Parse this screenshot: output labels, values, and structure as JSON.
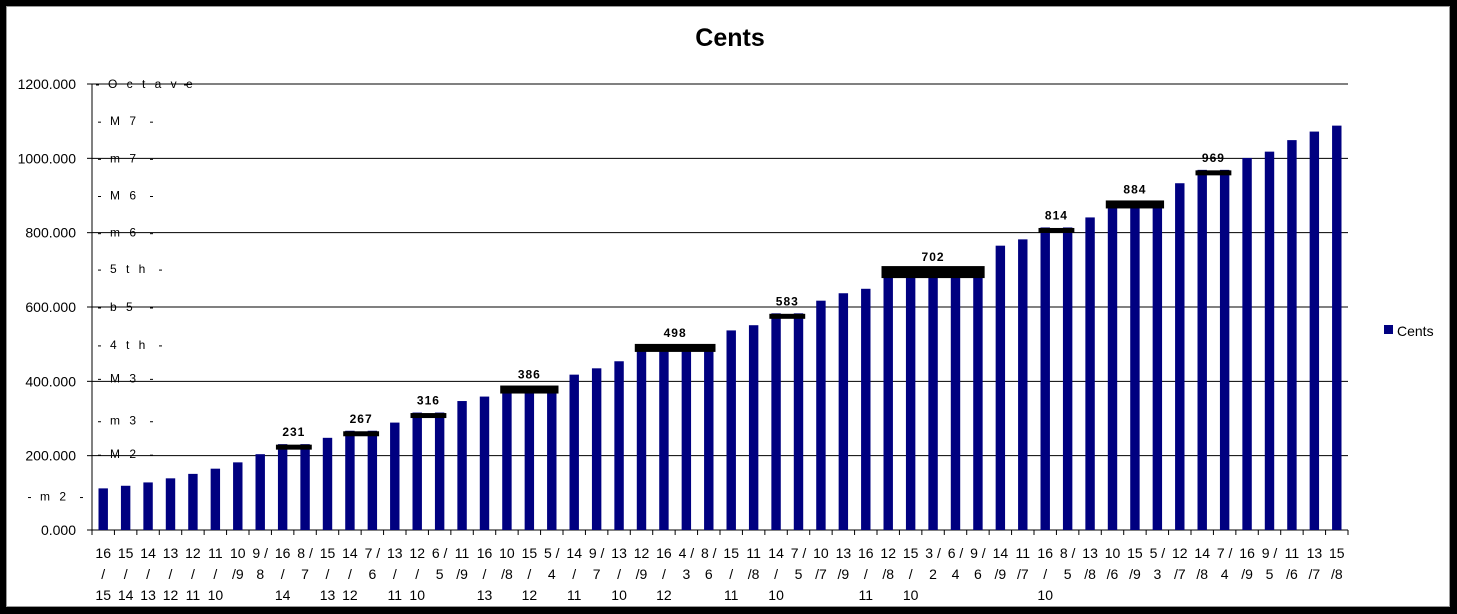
{
  "chart_data": {
    "type": "bar",
    "title": "Cents",
    "ylim": [
      0,
      1200
    ],
    "y_ticks": [
      "0.000",
      "200.000",
      "400.000",
      "600.000",
      "800.000",
      "1000.000",
      "1200.000"
    ],
    "y_tick_values": [
      0,
      200,
      400,
      600,
      800,
      1000,
      1200
    ],
    "grid": true,
    "legend_position": "right",
    "bar_color": "#000080",
    "categories": [
      [
        "16",
        "/",
        "15"
      ],
      [
        "15",
        "/",
        "14"
      ],
      [
        "14",
        "/",
        "13"
      ],
      [
        "13",
        "/",
        "12"
      ],
      [
        "12",
        "/",
        "11"
      ],
      [
        "11",
        "/",
        "10"
      ],
      [
        "10",
        "/9",
        ""
      ],
      [
        "9 /",
        "8",
        ""
      ],
      [
        "16",
        "/",
        "14"
      ],
      [
        "8 /",
        "7",
        ""
      ],
      [
        "15",
        "/",
        "13"
      ],
      [
        "14",
        "/",
        "12"
      ],
      [
        "7 /",
        "6",
        ""
      ],
      [
        "13",
        "/",
        "11"
      ],
      [
        "12",
        "/",
        "10"
      ],
      [
        "6 /",
        "5",
        ""
      ],
      [
        "11",
        "/9",
        ""
      ],
      [
        "16",
        "/",
        "13"
      ],
      [
        "10",
        "/8",
        ""
      ],
      [
        "15",
        "/",
        "12"
      ],
      [
        "5 /",
        "4",
        ""
      ],
      [
        "14",
        "/",
        "11"
      ],
      [
        "9 /",
        "7",
        ""
      ],
      [
        "13",
        "/",
        "10"
      ],
      [
        "12",
        "/9",
        ""
      ],
      [
        "16",
        "/",
        "12"
      ],
      [
        "4 /",
        "3",
        ""
      ],
      [
        "8 /",
        "6",
        ""
      ],
      [
        "15",
        "/",
        "11"
      ],
      [
        "11",
        "/8",
        ""
      ],
      [
        "14",
        "/",
        "10"
      ],
      [
        "7 /",
        "5",
        ""
      ],
      [
        "10",
        "/7",
        ""
      ],
      [
        "13",
        "/9",
        ""
      ],
      [
        "16",
        "/",
        "11"
      ],
      [
        "12",
        "/8",
        ""
      ],
      [
        "15",
        "/",
        "10"
      ],
      [
        "3 /",
        "2",
        ""
      ],
      [
        "6 /",
        "4",
        ""
      ],
      [
        "9 /",
        "6",
        ""
      ],
      [
        "14",
        "/9",
        ""
      ],
      [
        "11",
        "/7",
        ""
      ],
      [
        "16",
        "/",
        "10"
      ],
      [
        "8 /",
        "5",
        ""
      ],
      [
        "13",
        "/8",
        ""
      ],
      [
        "10",
        "/6",
        ""
      ],
      [
        "15",
        "/9",
        ""
      ],
      [
        "5 /",
        "3",
        ""
      ],
      [
        "12",
        "/7",
        ""
      ],
      [
        "14",
        "/8",
        ""
      ],
      [
        "7 /",
        "4",
        ""
      ],
      [
        "16",
        "/9",
        ""
      ],
      [
        "9 /",
        "5",
        ""
      ],
      [
        "11",
        "/6",
        ""
      ],
      [
        "13",
        "/7",
        ""
      ],
      [
        "15",
        "/8",
        ""
      ]
    ],
    "series": [
      {
        "name": "Cents",
        "values": [
          112,
          119,
          128,
          139,
          151,
          165,
          182,
          204,
          231,
          231,
          248,
          267,
          267,
          289,
          316,
          316,
          347,
          359,
          386,
          386,
          386,
          418,
          435,
          454,
          498,
          498,
          498,
          498,
          537,
          551,
          583,
          583,
          617,
          637,
          649,
          702,
          702,
          702,
          702,
          702,
          765,
          782,
          814,
          814,
          841,
          884,
          884,
          884,
          933,
          969,
          969,
          1001,
          1018,
          1049,
          1072,
          1088
        ]
      }
    ],
    "interval_labels": [
      {
        "text": "m 2",
        "value": 90
      },
      {
        "text": "M 2",
        "value": 204
      },
      {
        "text": "m 3",
        "value": 294
      },
      {
        "text": "M 3",
        "value": 408
      },
      {
        "text": "4 t h",
        "value": 498
      },
      {
        "text": "b 5",
        "value": 600
      },
      {
        "text": "5 t h",
        "value": 702
      },
      {
        "text": "m 6",
        "value": 800
      },
      {
        "text": "M 6",
        "value": 900
      },
      {
        "text": "m 7",
        "value": 1000
      },
      {
        "text": "M 7",
        "value": 1100
      },
      {
        "text": "O c t a v e",
        "value": 1200
      }
    ],
    "annotations": [
      {
        "text": "231",
        "value": 231,
        "from": 8,
        "to": 9
      },
      {
        "text": "267",
        "value": 267,
        "from": 11,
        "to": 12
      },
      {
        "text": "316",
        "value": 316,
        "from": 14,
        "to": 15
      },
      {
        "text": "386",
        "value": 386,
        "from": 18,
        "to": 20
      },
      {
        "text": "498",
        "value": 498,
        "from": 24,
        "to": 27
      },
      {
        "text": "583",
        "value": 583,
        "from": 30,
        "to": 31
      },
      {
        "text": "702",
        "value": 702,
        "from": 35,
        "to": 39
      },
      {
        "text": "814",
        "value": 814,
        "from": 42,
        "to": 43
      },
      {
        "text": "884",
        "value": 884,
        "from": 45,
        "to": 47
      },
      {
        "text": "969",
        "value": 969,
        "from": 49,
        "to": 50
      }
    ]
  }
}
